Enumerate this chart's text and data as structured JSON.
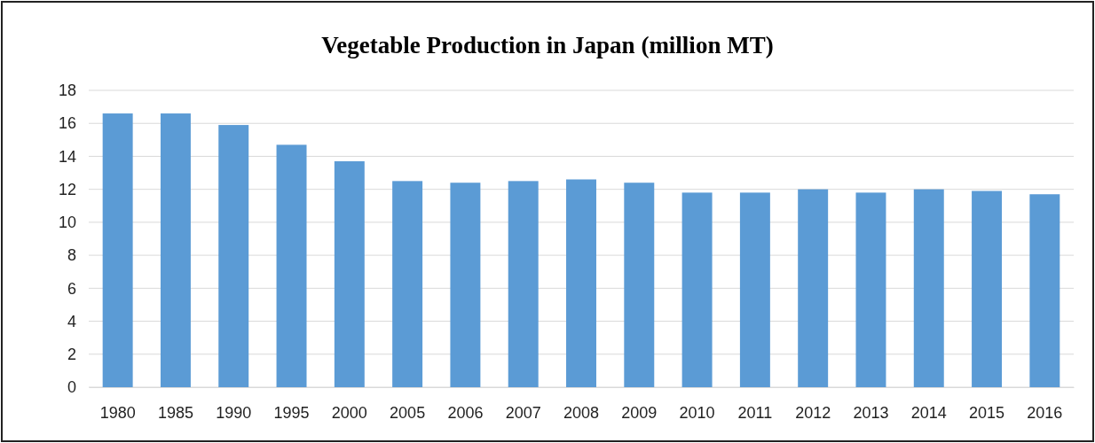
{
  "chart_data": {
    "type": "bar",
    "title": "Vegetable Production in Japan (million MT)",
    "categories": [
      "1980",
      "1985",
      "1990",
      "1995",
      "2000",
      "2005",
      "2006",
      "2007",
      "2008",
      "2009",
      "2010",
      "2011",
      "2012",
      "2013",
      "2014",
      "2015",
      "2016"
    ],
    "values": [
      16.6,
      16.6,
      15.9,
      14.7,
      13.7,
      12.5,
      12.4,
      12.5,
      12.6,
      12.4,
      11.8,
      11.8,
      12.0,
      11.8,
      12.0,
      11.9,
      11.7
    ],
    "color": "#5b9bd5",
    "ylim": [
      0,
      18
    ],
    "yticks": [
      0,
      2,
      4,
      6,
      8,
      10,
      12,
      14,
      16,
      18
    ],
    "grid": "y"
  }
}
